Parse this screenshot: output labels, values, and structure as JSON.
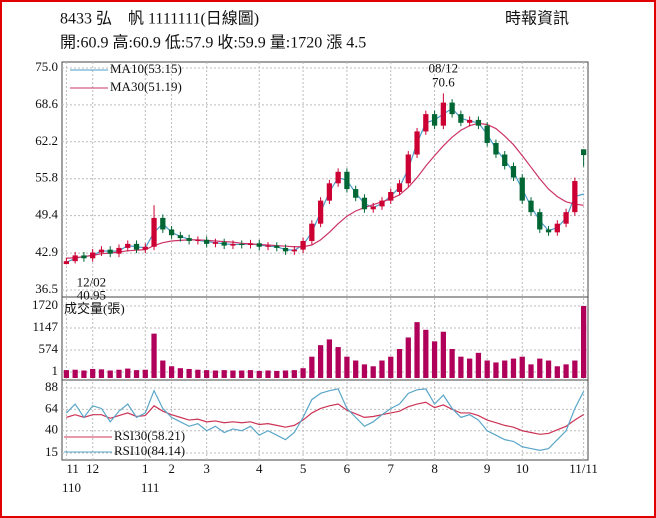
{
  "header": {
    "title": "8433 弘　帆 1111111(日線圖)",
    "source": "時報資訊",
    "quote": "開:60.9 高:60.9 低:57.9 收:59.9 量:1720 漲 4.5"
  },
  "chart_data": [
    {
      "type": "candlestick",
      "categories": [
        null,
        null,
        null,
        null,
        null,
        null,
        null,
        null,
        null,
        null,
        null,
        null,
        null,
        null,
        null,
        null,
        null,
        null,
        null,
        null,
        null,
        null,
        null,
        null,
        null,
        null,
        null,
        null,
        null,
        null,
        null,
        null,
        null,
        null,
        null,
        null,
        null,
        null,
        null,
        null,
        null,
        null,
        null,
        null,
        null,
        null,
        null,
        null,
        null,
        null,
        null,
        null,
        null,
        null,
        null,
        null,
        null,
        null,
        null,
        null
      ],
      "open": [
        41,
        41.5,
        42.5,
        42,
        43,
        43.5,
        42.8,
        43.8,
        44.5,
        43.5,
        44,
        49,
        47,
        46,
        45.5,
        45,
        45.2,
        44.5,
        44.8,
        44.2,
        44.5,
        44.3,
        44.6,
        44,
        44.2,
        43.8,
        43.2,
        43.5,
        45,
        48,
        52,
        55,
        57,
        54,
        52.5,
        50.5,
        51,
        52,
        53.5,
        55,
        60,
        64,
        67,
        65,
        69,
        67,
        65.5,
        66,
        65,
        62,
        60,
        58,
        56,
        52,
        50,
        47,
        46.5,
        48,
        50,
        60.9
      ],
      "high": [
        42.1,
        43.1,
        43.1,
        43.6,
        44.1,
        44.1,
        44.4,
        45.1,
        45.1,
        44.6,
        51.2,
        49.6,
        47.6,
        46.6,
        46.1,
        45.8,
        45.8,
        45.4,
        45.4,
        45.1,
        45.1,
        45.2,
        45.2,
        44.8,
        44.8,
        44.4,
        44.1,
        45.6,
        48.6,
        52.6,
        55.6,
        57.6,
        57.6,
        54.6,
        53.1,
        51.6,
        52.6,
        54.1,
        55.6,
        60.6,
        64.6,
        67.6,
        67.6,
        70.6,
        69.6,
        67.6,
        66.6,
        66.6,
        65.6,
        62.6,
        60.6,
        58.6,
        56.6,
        52.6,
        50.6,
        47.6,
        48.6,
        50.6,
        56,
        60.9
      ],
      "low": [
        40.95,
        41.1,
        41.4,
        41.4,
        42.4,
        42.2,
        42.2,
        43.2,
        42.9,
        42.9,
        43.4,
        46.4,
        45.4,
        44.9,
        44.4,
        44.4,
        43.9,
        43.9,
        43.6,
        43.6,
        43.7,
        43.7,
        43.4,
        43.4,
        43.2,
        42.6,
        42.6,
        42.9,
        44.4,
        47.4,
        51.4,
        54.4,
        53.4,
        51.9,
        49.9,
        49.9,
        50.4,
        51.4,
        52.9,
        54.4,
        59.4,
        63.4,
        64.4,
        64.4,
        66.4,
        64.9,
        64.9,
        64.4,
        61.4,
        59.4,
        57.4,
        55.4,
        51.4,
        49.4,
        46.4,
        45.9,
        45.9,
        47.4,
        49.4,
        57.9
      ],
      "close": [
        41.5,
        42.5,
        42,
        43,
        43.5,
        42.8,
        43.8,
        44.5,
        43.5,
        44,
        49,
        47,
        46,
        45.5,
        45,
        45.2,
        44.5,
        44.8,
        44.2,
        44.5,
        44.3,
        44.6,
        44,
        44.2,
        43.8,
        43.2,
        43.5,
        45,
        48,
        52,
        55,
        57,
        54,
        52.5,
        50.5,
        51,
        52,
        53.5,
        55,
        60,
        64,
        67,
        65,
        69,
        67,
        65.5,
        66,
        65,
        62,
        60,
        58,
        56,
        52,
        50,
        47,
        46.5,
        48,
        50,
        55.4,
        59.9
      ],
      "up_color": "#cc0033",
      "down_color": "#006633",
      "series": [
        {
          "name": "MA10(53.15)",
          "color": "#4a9cc9",
          "values": [
            41.3,
            42,
            42.3,
            42.5,
            43.3,
            43.2,
            43.3,
            44.2,
            44,
            43.8,
            46.5,
            48,
            46.5,
            45.8,
            45.3,
            45.1,
            44.9,
            44.7,
            44.5,
            44.4,
            44.4,
            44.5,
            44.3,
            44.1,
            44,
            43.5,
            43.4,
            44.3,
            46.5,
            50,
            53.5,
            56,
            55.5,
            53.3,
            51.5,
            50.8,
            51.5,
            52.8,
            54.3,
            57.5,
            62,
            65.5,
            66,
            67,
            68,
            66.3,
            65.8,
            65.5,
            63.5,
            61,
            59,
            57,
            54,
            51,
            48.5,
            46.8,
            47.3,
            49,
            52.7,
            53.15
          ]
        },
        {
          "name": "MA30(51.19)",
          "color": "#cc3366",
          "values": [
            42,
            42.1,
            42.3,
            42.5,
            42.8,
            42.9,
            43.1,
            43.3,
            43.4,
            43.5,
            44.2,
            44.7,
            45,
            45.1,
            45.2,
            45.2,
            45.1,
            45,
            44.9,
            44.8,
            44.6,
            44.5,
            44.4,
            44.3,
            44.2,
            44.1,
            44,
            44,
            44.3,
            45.2,
            46.5,
            48,
            49.3,
            50.2,
            50.8,
            51.3,
            51.8,
            52.3,
            53,
            54.3,
            56,
            58,
            59.8,
            61.5,
            63,
            64.2,
            65,
            65.4,
            65.2,
            64.5,
            63.2,
            61.7,
            59.8,
            57.8,
            55.8,
            54,
            52.7,
            51.8,
            51.4,
            51.19
          ]
        }
      ],
      "annotations": [
        {
          "text": "08/12",
          "at": 43
        },
        {
          "text": "70.6",
          "at": 43
        },
        {
          "text": "12/02",
          "at": 0
        },
        {
          "text": "40.95",
          "at": 0
        }
      ],
      "ylim": [
        36.5,
        75
      ],
      "yticks": [
        {
          "value": 75,
          "label": "75.0"
        },
        68.6,
        62.2,
        55.8,
        49.4,
        42.9,
        36.5
      ],
      "grid": true,
      "xticks": [
        {
          "value": 0,
          "label": "11"
        },
        {
          "value": 3,
          "label": "12"
        },
        {
          "value": 9,
          "label": "1"
        },
        {
          "value": 12,
          "label": "2"
        },
        {
          "value": 16,
          "label": "3"
        },
        {
          "value": 22,
          "label": "4"
        },
        {
          "value": 27,
          "label": "5"
        },
        {
          "value": 32,
          "label": "6"
        },
        {
          "value": 37,
          "label": "7"
        },
        {
          "value": 42,
          "label": "8"
        },
        {
          "value": 48,
          "label": "9"
        },
        {
          "value": 52,
          "label": "10"
        },
        {
          "value": 59,
          "label": "11/11"
        }
      ],
      "xticks_year": [
        {
          "value": 0,
          "label": "110"
        },
        {
          "value": 9,
          "label": "111"
        }
      ]
    },
    {
      "type": "bar",
      "title": "成交量(張)",
      "color": "#b0005a",
      "values": [
        50,
        60,
        40,
        80,
        70,
        40,
        60,
        90,
        50,
        60,
        1000,
        300,
        150,
        100,
        80,
        60,
        50,
        40,
        50,
        40,
        40,
        50,
        30,
        40,
        30,
        40,
        50,
        100,
        400,
        700,
        850,
        650,
        400,
        300,
        200,
        150,
        300,
        400,
        600,
        900,
        1300,
        1100,
        800,
        1050,
        600,
        400,
        350,
        500,
        300,
        250,
        300,
        350,
        400,
        200,
        350,
        300,
        150,
        200,
        300,
        1720
      ],
      "ylim": [
        1,
        1720
      ],
      "yticks": [
        1720,
        1147,
        574,
        1
      ],
      "grid": true
    },
    {
      "type": "line",
      "series": [
        {
          "name": "RSI30(58.21)",
          "color": "#cc3355",
          "values": [
            55,
            58,
            55,
            58,
            58,
            54,
            57,
            60,
            56,
            57,
            68,
            62,
            58,
            55,
            52,
            53,
            50,
            51,
            49,
            50,
            49,
            50,
            47,
            48,
            46,
            44,
            46,
            52,
            60,
            65,
            68,
            70,
            63,
            59,
            55,
            56,
            58,
            60,
            62,
            67,
            70,
            72,
            66,
            69,
            64,
            60,
            60,
            57,
            52,
            49,
            46,
            44,
            40,
            38,
            36,
            37,
            41,
            45,
            52,
            58.21
          ]
        },
        {
          "name": "RSI10(84.14)",
          "color": "#5aa6c8",
          "values": [
            60,
            70,
            55,
            68,
            65,
            50,
            62,
            70,
            55,
            60,
            85,
            65,
            55,
            50,
            45,
            48,
            40,
            45,
            38,
            42,
            40,
            45,
            35,
            40,
            35,
            30,
            38,
            55,
            75,
            82,
            85,
            87,
            65,
            55,
            45,
            50,
            58,
            65,
            70,
            82,
            86,
            87,
            70,
            80,
            65,
            55,
            58,
            52,
            40,
            35,
            30,
            28,
            22,
            20,
            18,
            20,
            30,
            40,
            65,
            84.14
          ]
        }
      ],
      "ylim": [
        15,
        88
      ],
      "yticks": [
        88,
        64,
        40,
        15
      ],
      "grid": true
    }
  ]
}
